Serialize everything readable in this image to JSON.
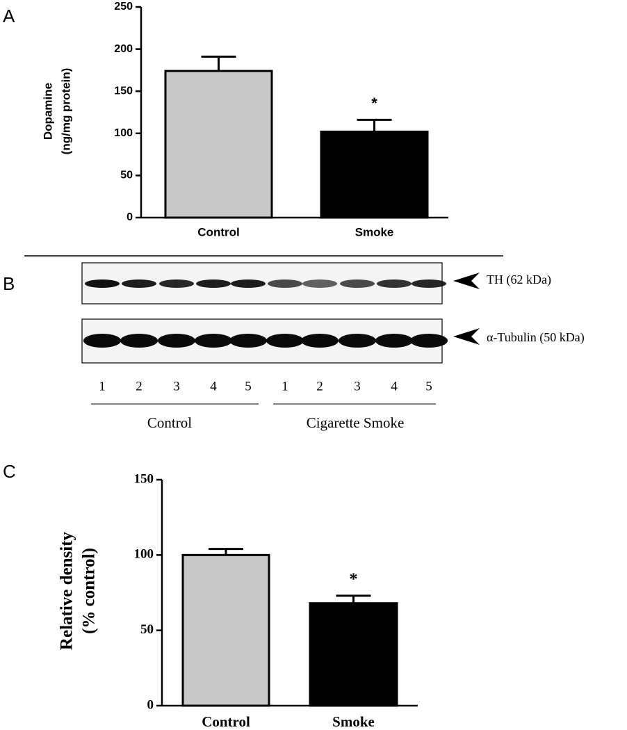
{
  "chart_data": [
    {
      "type": "bar",
      "panel": "A",
      "ylabel": [
        "Dopamine",
        "(ng/mg protein)"
      ],
      "categories": [
        "Control",
        "Smoke"
      ],
      "values": [
        174,
        102
      ],
      "errors": [
        17,
        14
      ],
      "colors": [
        "#c8c8c8",
        "#000000"
      ],
      "significance": [
        null,
        "*"
      ],
      "ylim": [
        0,
        250
      ],
      "yticks": [
        0,
        50,
        100,
        150,
        200,
        250
      ]
    },
    {
      "type": "bar",
      "panel": "C",
      "ylabel": [
        "Relative density",
        "(% control)"
      ],
      "categories": [
        "Control",
        "Smoke"
      ],
      "values": [
        100,
        68
      ],
      "errors": [
        4,
        5
      ],
      "colors": [
        "#c8c8c8",
        "#000000"
      ],
      "significance": [
        null,
        "*"
      ],
      "ylim": [
        0,
        150
      ],
      "yticks": [
        0,
        50,
        100,
        150
      ]
    }
  ],
  "blot": {
    "panel": "B",
    "bands": [
      "TH (62 kDa)",
      "α-Tubulin (50 kDa)"
    ],
    "lanes": [
      "1",
      "2",
      "3",
      "4",
      "5",
      "1",
      "2",
      "3",
      "4",
      "5"
    ],
    "groups": [
      "Control",
      "Cigarette Smoke"
    ]
  }
}
